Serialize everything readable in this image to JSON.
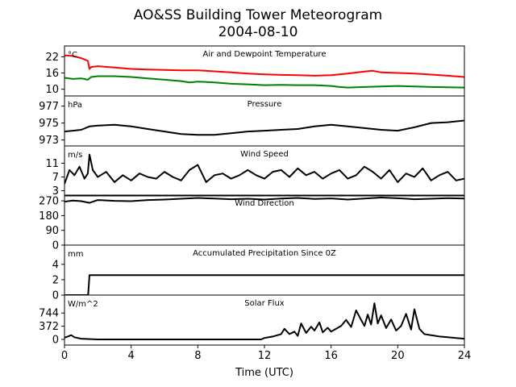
{
  "figure": {
    "title_line1": "AO&SS Building Tower Meteorogram",
    "title_line2": "2004-08-10",
    "xlabel": "Time (UTC)",
    "xticks": [
      0,
      4,
      8,
      12,
      16,
      20,
      24
    ],
    "xlim": [
      0,
      24
    ]
  },
  "chart_data": [
    {
      "type": "line",
      "title": "Air and Dewpoint Temperature",
      "unit_label": "°C",
      "ylim": [
        7.5,
        26
      ],
      "yticks": [
        10,
        16,
        22
      ],
      "series": [
        {
          "name": "",
          "color": "#ff0000",
          "x": [
            0,
            0.5,
            1.0,
            1.4,
            1.5,
            1.6,
            2,
            3,
            4,
            5,
            6,
            7,
            8,
            9,
            10,
            11,
            12,
            13,
            14,
            15,
            16,
            17,
            18,
            18.5,
            19,
            20,
            21,
            22,
            23,
            24
          ],
          "y": [
            22.5,
            22.3,
            21.5,
            20.5,
            17.5,
            18.2,
            18.5,
            18.0,
            17.5,
            17.3,
            17.1,
            17.0,
            17.0,
            16.6,
            16.2,
            15.8,
            15.5,
            15.3,
            15.2,
            15.0,
            15.2,
            15.8,
            16.5,
            16.8,
            16.2,
            16.0,
            15.8,
            15.4,
            15.0,
            14.5
          ]
        },
        {
          "name": "",
          "color": "#008000",
          "x": [
            0,
            0.5,
            1.0,
            1.4,
            1.6,
            2,
            3,
            4,
            5,
            6,
            7,
            7.5,
            8,
            9,
            10,
            11,
            12,
            13,
            14,
            15,
            16,
            16.5,
            17,
            18,
            19,
            20,
            21,
            22,
            23,
            24
          ],
          "y": [
            14.2,
            13.8,
            14.0,
            13.5,
            14.5,
            14.8,
            14.8,
            14.5,
            14.0,
            13.5,
            13.0,
            12.5,
            12.8,
            12.5,
            12.0,
            11.8,
            11.5,
            11.6,
            11.5,
            11.5,
            11.2,
            10.8,
            10.6,
            10.8,
            11.0,
            11.2,
            11.0,
            10.8,
            10.7,
            10.6
          ]
        }
      ]
    },
    {
      "type": "line",
      "title": "Pressure",
      "unit_label": "hPa",
      "ylim": [
        972.3,
        978.2
      ],
      "yticks": [
        973,
        975,
        977
      ],
      "series": [
        {
          "name": "",
          "color": "#000000",
          "x": [
            0,
            0.5,
            1,
            1.5,
            2,
            3,
            4,
            5,
            6,
            7,
            8,
            9,
            10,
            11,
            12,
            13,
            14,
            15,
            16,
            17,
            18,
            19,
            20,
            21,
            22,
            23,
            24
          ],
          "y": [
            974.0,
            974.1,
            974.2,
            974.6,
            974.7,
            974.8,
            974.6,
            974.3,
            974.0,
            973.7,
            973.6,
            973.6,
            973.8,
            974.0,
            974.1,
            974.2,
            974.3,
            974.6,
            974.8,
            974.6,
            974.4,
            974.2,
            974.1,
            974.5,
            975.0,
            975.1,
            975.3
          ]
        }
      ]
    },
    {
      "type": "line",
      "title": "Wind Speed",
      "unit_label": "m/s",
      "ylim": [
        1.5,
        16
      ],
      "yticks": [
        3,
        7,
        11
      ],
      "series": [
        {
          "name": "",
          "color": "#000000",
          "x": [
            0,
            0.3,
            0.6,
            0.9,
            1.2,
            1.4,
            1.5,
            1.7,
            2.0,
            2.5,
            3.0,
            3.5,
            4.0,
            4.5,
            5.0,
            5.5,
            6.0,
            6.5,
            7.0,
            7.5,
            8.0,
            8.5,
            9.0,
            9.5,
            10.0,
            10.5,
            11.0,
            11.5,
            12.0,
            12.5,
            13.0,
            13.5,
            14.0,
            14.5,
            15.0,
            15.5,
            16.0,
            16.5,
            17.0,
            17.5,
            18.0,
            18.5,
            19.0,
            19.5,
            20.0,
            20.5,
            21.0,
            21.5,
            22.0,
            22.5,
            23.0,
            23.5,
            24.0
          ],
          "y": [
            5.0,
            9.0,
            7.5,
            10.0,
            6.5,
            8.0,
            13.5,
            9.0,
            7.0,
            8.5,
            5.5,
            7.5,
            6.0,
            8.0,
            7.0,
            6.5,
            8.5,
            7.0,
            6.0,
            9.0,
            10.5,
            5.5,
            7.5,
            8.0,
            6.5,
            7.5,
            9.0,
            7.5,
            6.5,
            8.5,
            9.0,
            7.0,
            9.5,
            7.5,
            8.5,
            6.5,
            8.0,
            9.0,
            6.5,
            7.5,
            10.0,
            8.5,
            6.5,
            9.0,
            5.5,
            8.0,
            7.0,
            9.5,
            6.0,
            7.5,
            8.5,
            6.0,
            6.5
          ]
        }
      ]
    },
    {
      "type": "line",
      "title": "Wind Direction",
      "unit_label": "",
      "ylim": [
        0,
        305
      ],
      "yticks": [
        0,
        90,
        180,
        270
      ],
      "series": [
        {
          "name": "",
          "color": "#000000",
          "x": [
            0,
            0.5,
            1,
            1.5,
            2,
            3,
            4,
            5,
            6,
            7,
            8,
            9,
            10,
            11,
            12,
            13,
            14,
            15,
            16,
            17,
            18,
            19,
            20,
            21,
            22,
            23,
            24
          ],
          "y": [
            265,
            272,
            268,
            258,
            275,
            270,
            268,
            275,
            278,
            283,
            288,
            284,
            280,
            283,
            278,
            284,
            288,
            282,
            285,
            278,
            284,
            290,
            286,
            280,
            283,
            287,
            284
          ]
        }
      ]
    },
    {
      "type": "line",
      "title": "Accumulated Precipitation Since 0Z",
      "unit_label": "mm",
      "ylim": [
        0,
        6.5
      ],
      "yticks": [
        0,
        2,
        4
      ],
      "series": [
        {
          "name": "",
          "color": "#000000",
          "x": [
            0,
            1.42,
            1.5,
            24
          ],
          "y": [
            0,
            0,
            2.6,
            2.6
          ]
        }
      ]
    },
    {
      "type": "line",
      "title": "Solar Flux",
      "unit_label": "W/m^2",
      "ylim": [
        -160,
        1250
      ],
      "yticks": [
        0,
        372,
        744
      ],
      "series": [
        {
          "name": "",
          "color": "#000000",
          "x": [
            0,
            0.2,
            0.4,
            0.6,
            1,
            2,
            4,
            6,
            8,
            10,
            11,
            11.8,
            12,
            12.5,
            13,
            13.2,
            13.5,
            13.8,
            14,
            14.2,
            14.5,
            14.8,
            15,
            15.3,
            15.5,
            15.8,
            16,
            16.3,
            16.6,
            16.9,
            17.2,
            17.5,
            17.8,
            18,
            18.2,
            18.4,
            18.6,
            18.8,
            19,
            19.3,
            19.6,
            19.9,
            20.2,
            20.5,
            20.8,
            21,
            21.3,
            21.6,
            22,
            22.5,
            23,
            23.5,
            24
          ],
          "y": [
            50,
            80,
            120,
            60,
            20,
            0,
            0,
            0,
            0,
            0,
            0,
            0,
            40,
            80,
            150,
            300,
            150,
            220,
            100,
            450,
            180,
            360,
            250,
            480,
            200,
            330,
            220,
            300,
            380,
            550,
            350,
            820,
            550,
            380,
            700,
            420,
            1020,
            450,
            680,
            320,
            560,
            250,
            380,
            720,
            280,
            850,
            300,
            150,
            120,
            80,
            60,
            40,
            20
          ]
        }
      ]
    }
  ]
}
